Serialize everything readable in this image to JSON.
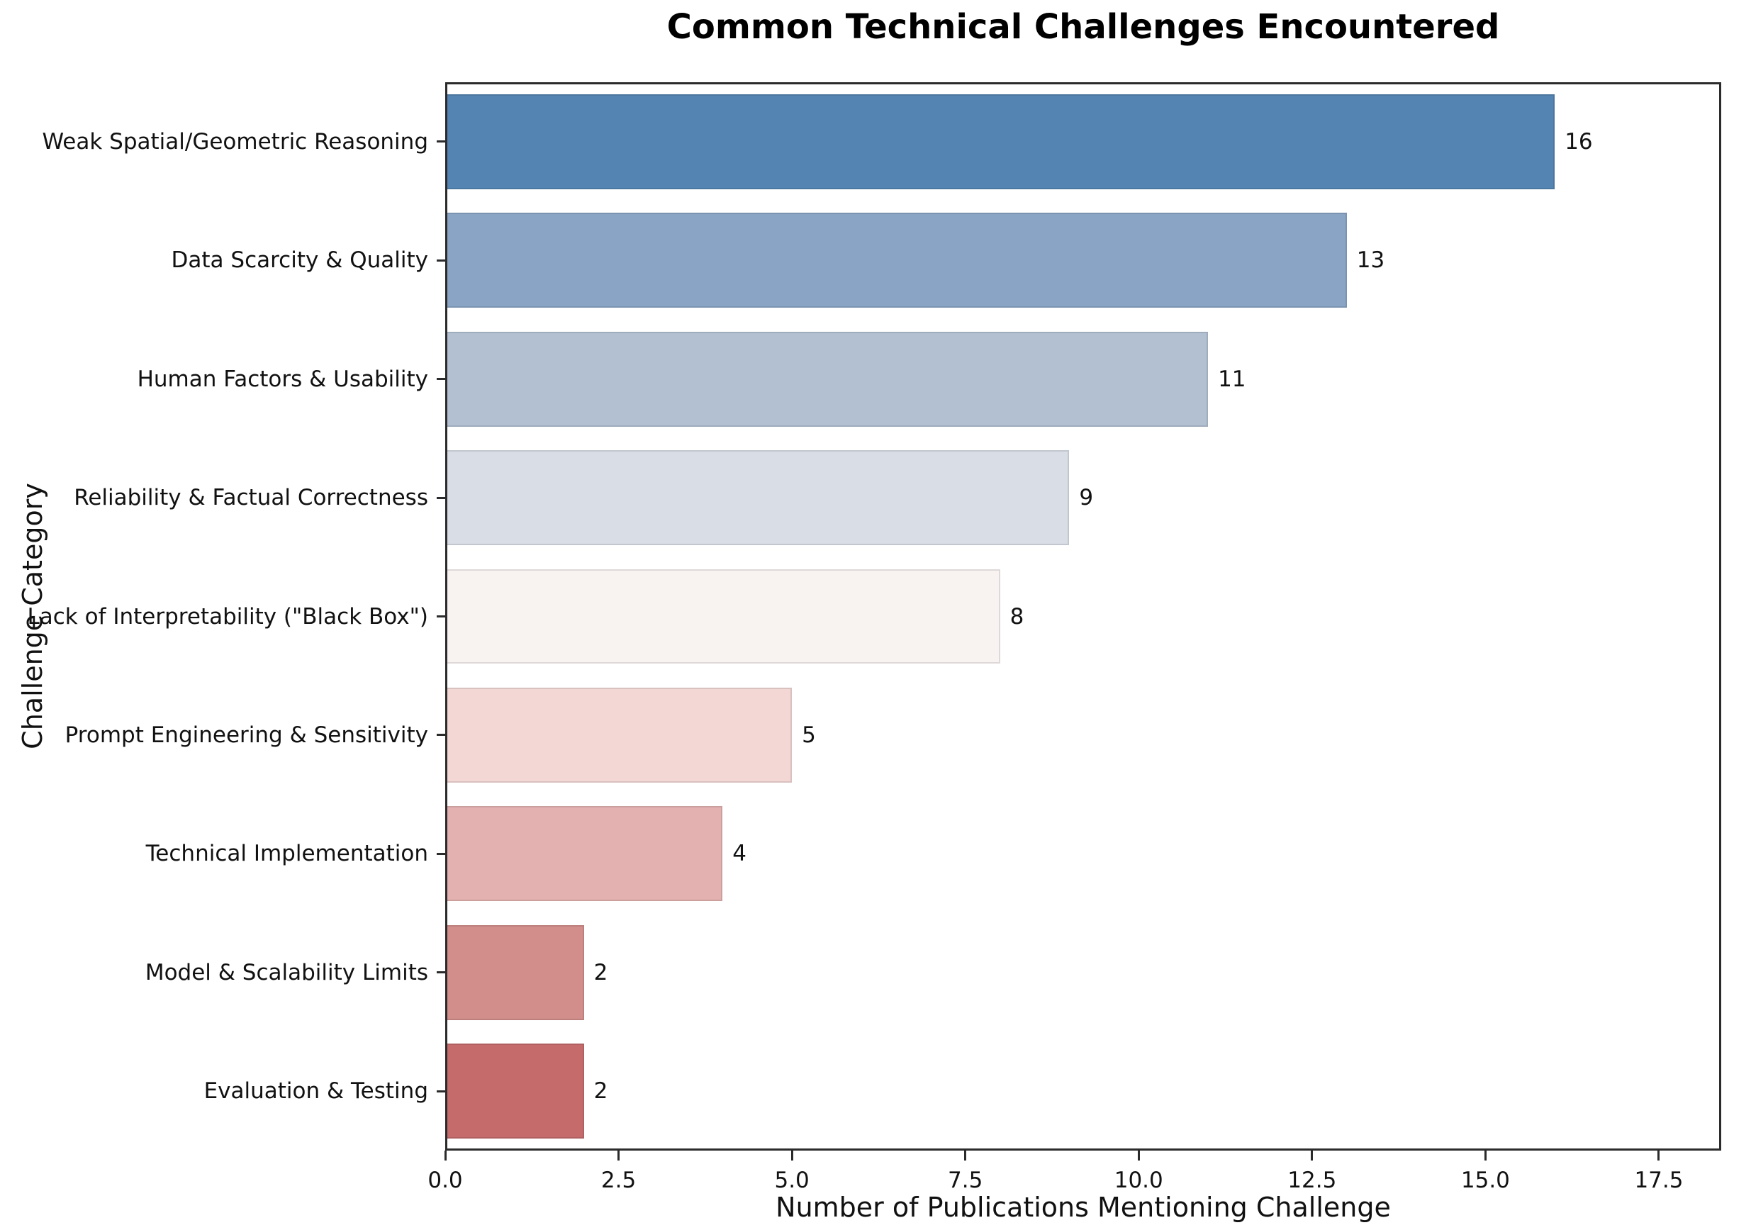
{
  "chart_data": {
    "type": "bar",
    "orientation": "horizontal",
    "title": "Common Technical Challenges Encountered",
    "xlabel": "Number of Publications Mentioning Challenge",
    "ylabel": "Challenge Category",
    "categories": [
      "Weak Spatial/Geometric Reasoning",
      "Data Scarcity & Quality",
      "Human Factors & Usability",
      "Reliability & Factual Correctness",
      "Lack of Interpretability (\"Black Box\")",
      "Prompt Engineering & Sensitivity",
      "Technical Implementation",
      "Model & Scalability Limits",
      "Evaluation & Testing"
    ],
    "values": [
      16,
      13,
      11,
      9,
      8,
      5,
      4,
      2,
      2
    ],
    "value_labels": [
      "16",
      "13",
      "11",
      "9",
      "8",
      "5",
      "4",
      "2",
      "2"
    ],
    "bar_colors": [
      "#5484b1",
      "#89a4c4",
      "#b2c0d2",
      "#d9dde6",
      "#f8f2f1",
      "#f2d7d5",
      "#e3b1b0",
      "#d28e8b",
      "#c56b6b"
    ],
    "xlim": [
      0,
      18.4
    ],
    "xticks": [
      0.0,
      2.5,
      5.0,
      7.5,
      10.0,
      12.5,
      15.0,
      17.5
    ],
    "xtick_labels": [
      "0.0",
      "2.5",
      "5.0",
      "7.5",
      "10.0",
      "12.5",
      "15.0",
      "17.5"
    ],
    "grid": false,
    "legend": null,
    "bar_height_fraction": 0.8,
    "axis_color": "#2b2b2b",
    "background_color": "#ffffff"
  }
}
